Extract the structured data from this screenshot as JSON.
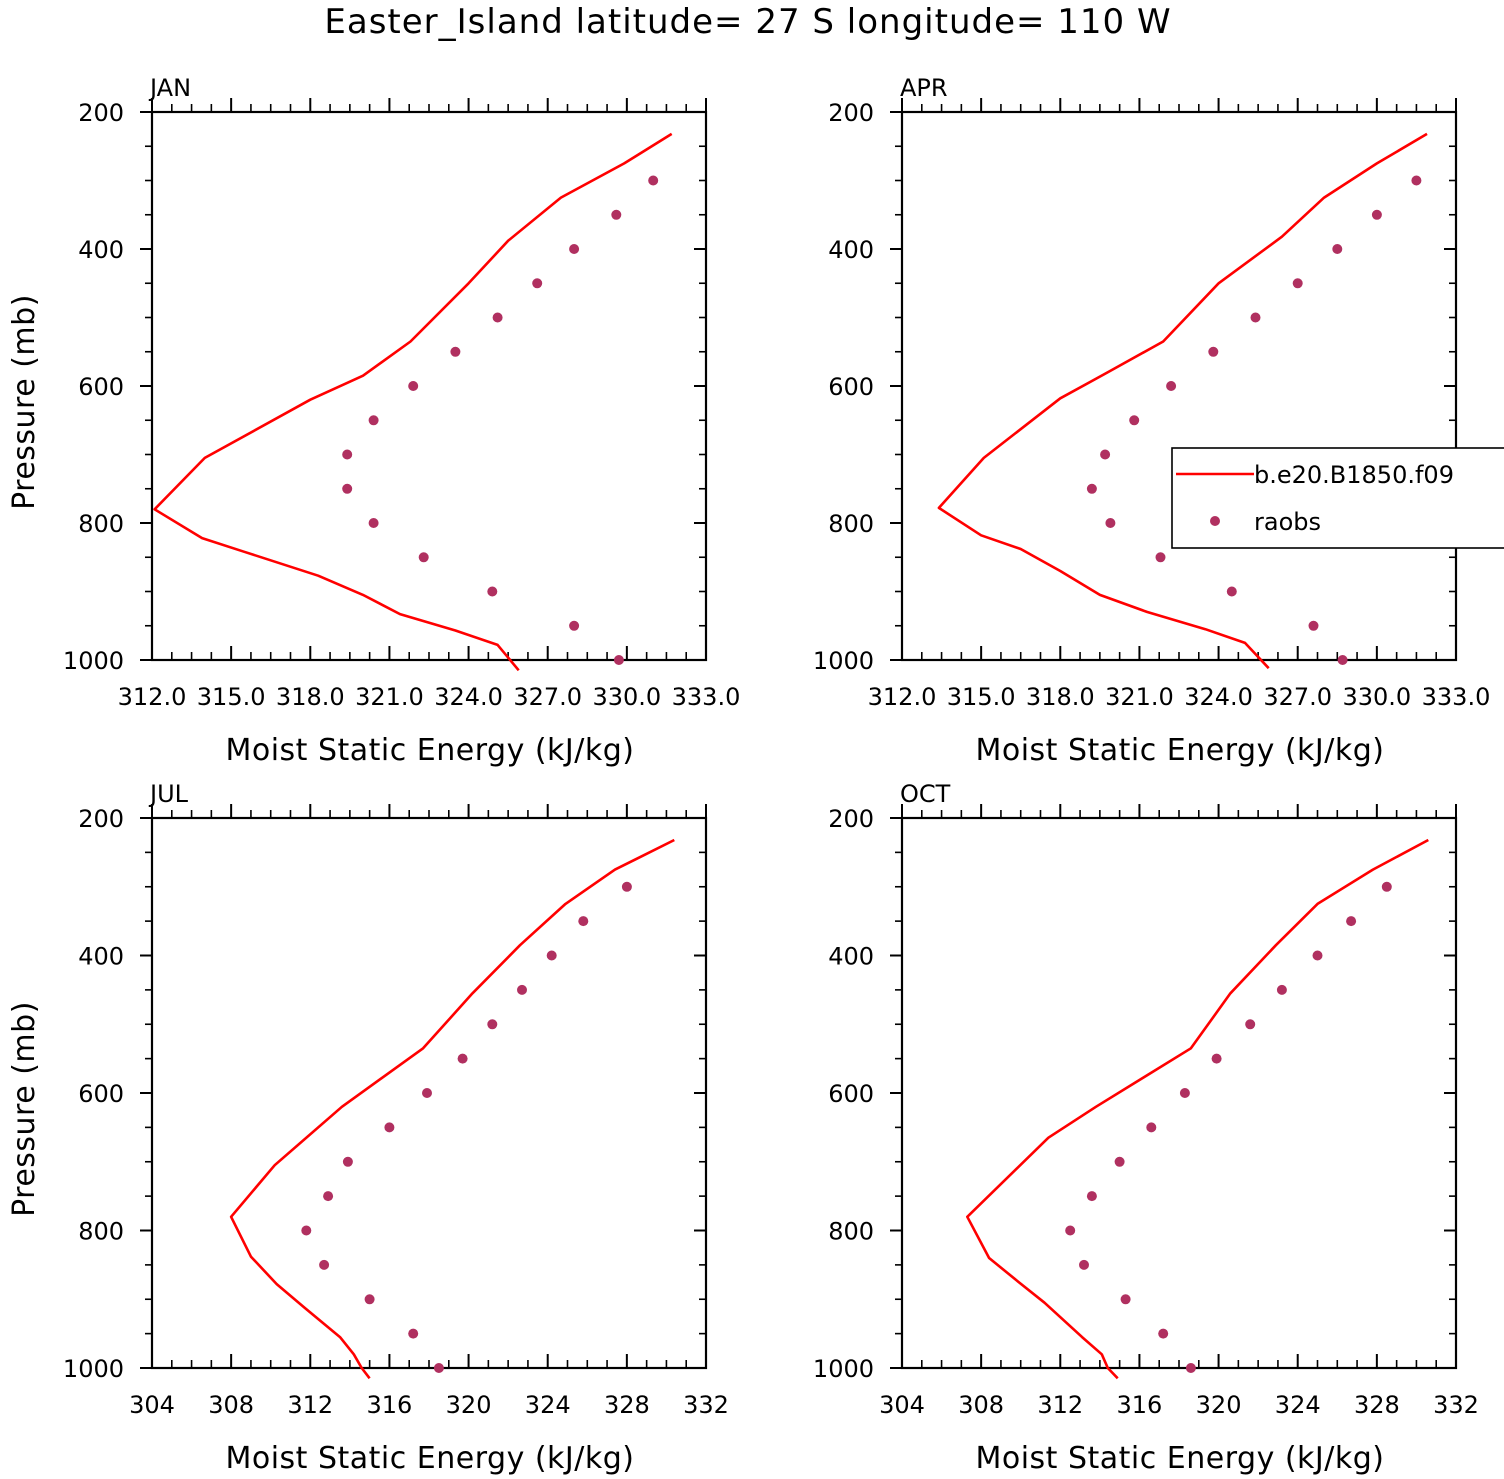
{
  "title": "Easter_Island  latitude= 27 S longitude= 110 W",
  "colors": {
    "model": "#ff0000",
    "raobs": "#b03060",
    "axes": "#000000"
  },
  "legend": {
    "model_label": "b.e20.B1850.f09",
    "obs_label": "raobs",
    "placement": "right-middle of APR panel"
  },
  "chart_data": [
    {
      "type": "line",
      "title": "JAN",
      "xlabel": "Moist Static Energy (kJ/kg)",
      "ylabel": "Pressure (mb)",
      "xlim": [
        312,
        333
      ],
      "xticks": [
        "312.0",
        "315.0",
        "318.0",
        "321.0",
        "324.0",
        "327.0",
        "330.0",
        "333.0"
      ],
      "ylim": [
        200,
        1000
      ],
      "yticks": [
        "200",
        "400",
        "600",
        "800",
        "1000"
      ],
      "series": [
        {
          "name": "b.e20.B1850.f09",
          "x": [
            331.7,
            329.9,
            327.5,
            325.5,
            324.0,
            321.8,
            320.0,
            318.0,
            314.0,
            312.1,
            313.9,
            315.5,
            318.3,
            320.0,
            321.4,
            323.5,
            325.1,
            325.9
          ],
          "y": [
            232,
            275,
            325,
            388,
            450,
            535,
            585,
            620,
            705,
            780,
            822,
            842,
            877,
            905,
            933,
            957,
            978,
            1015
          ]
        },
        {
          "name": "raobs",
          "x": [
            331.0,
            329.6,
            328.0,
            326.6,
            325.1,
            323.5,
            321.9,
            320.4,
            319.4,
            319.4,
            320.4,
            322.3,
            324.9,
            328.0,
            329.7
          ],
          "y": [
            300,
            350,
            400,
            450,
            500,
            550,
            600,
            650,
            700,
            750,
            800,
            850,
            900,
            950,
            1000
          ]
        }
      ]
    },
    {
      "type": "line",
      "title": "APR",
      "xlabel": "Moist Static Energy (kJ/kg)",
      "ylabel": "",
      "xlim": [
        312,
        333
      ],
      "xticks": [
        "312.0",
        "315.0",
        "318.0",
        "321.0",
        "324.0",
        "327.0",
        "330.0",
        "333.0"
      ],
      "ylim": [
        200,
        1000
      ],
      "yticks": [
        "200",
        "400",
        "600",
        "800",
        "1000"
      ],
      "series": [
        {
          "name": "b.e20.B1850.f09",
          "x": [
            331.9,
            330.0,
            328.0,
            326.4,
            324.0,
            321.9,
            319.8,
            318.0,
            315.1,
            313.4,
            315.0,
            316.5,
            318.0,
            319.5,
            321.3,
            323.5,
            325.0,
            325.9
          ],
          "y": [
            232,
            275,
            325,
            382,
            450,
            535,
            580,
            618,
            705,
            778,
            818,
            838,
            870,
            905,
            930,
            955,
            975,
            1012
          ]
        },
        {
          "name": "raobs",
          "x": [
            331.5,
            330.0,
            328.5,
            327.0,
            325.4,
            323.8,
            322.2,
            320.8,
            319.7,
            319.2,
            319.9,
            321.8,
            324.5,
            327.6,
            328.7
          ],
          "y": [
            300,
            350,
            400,
            450,
            500,
            550,
            600,
            650,
            700,
            750,
            800,
            850,
            900,
            950,
            1000
          ]
        }
      ]
    },
    {
      "type": "line",
      "title": "JUL",
      "xlabel": "Moist Static Energy (kJ/kg)",
      "ylabel": "Pressure (mb)",
      "xlim": [
        304,
        332
      ],
      "xticks": [
        "304",
        "308",
        "312",
        "316",
        "320",
        "324",
        "328",
        "332"
      ],
      "ylim": [
        200,
        1000
      ],
      "yticks": [
        "200",
        "400",
        "600",
        "800",
        "1000"
      ],
      "series": [
        {
          "name": "b.e20.B1850.f09",
          "x": [
            330.4,
            327.4,
            324.9,
            322.6,
            320.2,
            317.7,
            313.6,
            310.2,
            308.0,
            309.0,
            310.3,
            311.7,
            313.5,
            314.2,
            314.6,
            315.0
          ],
          "y": [
            232,
            275,
            325,
            385,
            455,
            535,
            620,
            705,
            780,
            838,
            878,
            912,
            955,
            980,
            1000,
            1015
          ]
        },
        {
          "name": "raobs",
          "x": [
            328.0,
            325.8,
            324.2,
            322.7,
            321.2,
            319.7,
            317.9,
            316.0,
            313.9,
            312.9,
            311.8,
            312.7,
            315.0,
            317.2,
            318.5
          ],
          "y": [
            300,
            350,
            400,
            450,
            500,
            550,
            600,
            650,
            700,
            750,
            800,
            850,
            900,
            950,
            1000
          ]
        }
      ]
    },
    {
      "type": "line",
      "title": "OCT",
      "xlabel": "Moist Static Energy (kJ/kg)",
      "ylabel": "",
      "xlim": [
        304,
        332
      ],
      "xticks": [
        "304",
        "308",
        "312",
        "316",
        "320",
        "324",
        "328",
        "332"
      ],
      "ylim": [
        200,
        1000
      ],
      "yticks": [
        "200",
        "400",
        "600",
        "800",
        "1000"
      ],
      "series": [
        {
          "name": "b.e20.B1850.f09",
          "x": [
            330.6,
            327.8,
            325.0,
            322.9,
            320.6,
            318.6,
            313.8,
            311.4,
            307.3,
            308.4,
            309.9,
            311.2,
            313.1,
            314.1,
            314.4,
            314.9
          ],
          "y": [
            232,
            275,
            325,
            385,
            455,
            535,
            620,
            665,
            780,
            840,
            875,
            905,
            955,
            980,
            1000,
            1015
          ]
        },
        {
          "name": "raobs",
          "x": [
            328.5,
            326.7,
            325.0,
            323.2,
            321.6,
            319.9,
            318.3,
            316.6,
            315.0,
            313.6,
            312.5,
            313.2,
            315.3,
            317.2,
            318.6
          ],
          "y": [
            300,
            350,
            400,
            450,
            500,
            550,
            600,
            650,
            700,
            750,
            800,
            850,
            900,
            950,
            1000
          ]
        }
      ]
    }
  ]
}
